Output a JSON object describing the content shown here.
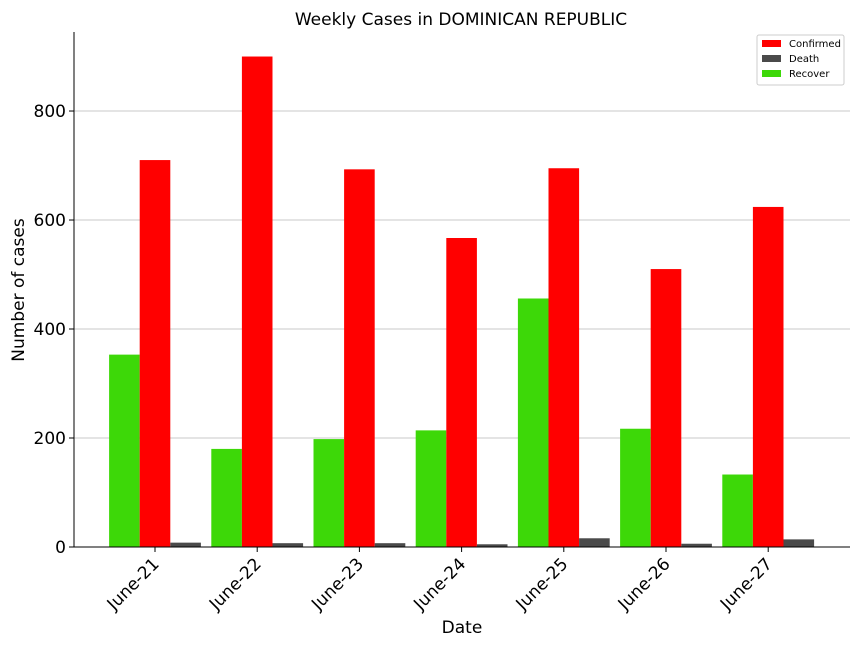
{
  "chart_data": {
    "type": "bar",
    "title": "Weekly Cases in DOMINICAN REPUBLIC",
    "xlabel": "Date",
    "ylabel": "Number of cases",
    "categories": [
      "June-21",
      "June-22",
      "June-23",
      "June-24",
      "June-25",
      "June-26",
      "June-27"
    ],
    "yticks": [
      0,
      200,
      400,
      600,
      800
    ],
    "ylim": [
      0,
      945
    ],
    "grid": "horizontal",
    "legend_position": "top-right",
    "series": [
      {
        "name": "Recover",
        "color": "#3dd808",
        "values": [
          353,
          180,
          198,
          214,
          456,
          217,
          133
        ]
      },
      {
        "name": "Confirmed",
        "color": "#ff0000",
        "values": [
          710,
          900,
          693,
          567,
          695,
          510,
          624
        ]
      },
      {
        "name": "Death",
        "color": "#4a4a4a",
        "values": [
          8,
          7,
          7,
          5,
          16,
          6,
          14
        ]
      }
    ],
    "legend_order": [
      "Confirmed",
      "Death",
      "Recover"
    ]
  }
}
